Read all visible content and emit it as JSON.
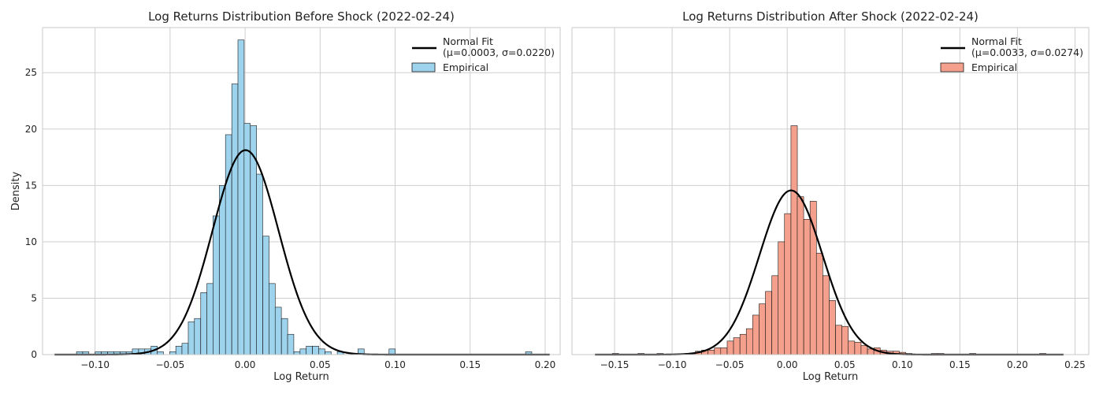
{
  "chart_data": [
    {
      "type": "bar",
      "title": "Log Returns Distribution Before Shock (2022-02-24)",
      "xlabel": "Log Return",
      "ylabel": "Density",
      "xlim": [
        -0.135,
        0.21
      ],
      "ylim": [
        0,
        29
      ],
      "xticks": [
        -0.1,
        -0.05,
        0.0,
        0.05,
        0.1,
        0.15,
        0.2
      ],
      "xtick_labels": [
        "−0.10",
        "−0.05",
        "0.00",
        "0.05",
        "0.10",
        "0.15",
        "0.20"
      ],
      "yticks": [
        0,
        5,
        10,
        15,
        20,
        25
      ],
      "ytick_labels": [
        "0",
        "5",
        "10",
        "15",
        "20",
        "25"
      ],
      "grid": true,
      "legend_position": "top-right",
      "bin_width": 0.00414,
      "bins": [
        {
          "x": -0.1103,
          "y": 0.25
        },
        {
          "x": -0.1062,
          "y": 0.25
        },
        {
          "x": -0.0979,
          "y": 0.25
        },
        {
          "x": -0.0938,
          "y": 0.25
        },
        {
          "x": -0.0896,
          "y": 0.25
        },
        {
          "x": -0.0855,
          "y": 0.25
        },
        {
          "x": -0.0813,
          "y": 0.25
        },
        {
          "x": -0.0772,
          "y": 0.25
        },
        {
          "x": -0.0731,
          "y": 0.5
        },
        {
          "x": -0.0689,
          "y": 0.5
        },
        {
          "x": -0.0648,
          "y": 0.5
        },
        {
          "x": -0.0606,
          "y": 0.75
        },
        {
          "x": -0.0565,
          "y": 0.25
        },
        {
          "x": -0.0524,
          "y": 0.0
        },
        {
          "x": -0.0482,
          "y": 0.25
        },
        {
          "x": -0.0441,
          "y": 0.75
        },
        {
          "x": -0.04,
          "y": 1.0
        },
        {
          "x": -0.0358,
          "y": 2.9
        },
        {
          "x": -0.0317,
          "y": 3.2
        },
        {
          "x": -0.0275,
          "y": 5.5
        },
        {
          "x": -0.0234,
          "y": 6.3
        },
        {
          "x": -0.0193,
          "y": 12.3
        },
        {
          "x": -0.0151,
          "y": 15.0
        },
        {
          "x": -0.011,
          "y": 19.5
        },
        {
          "x": -0.0068,
          "y": 24.0
        },
        {
          "x": -0.0027,
          "y": 27.9
        },
        {
          "x": 0.0014,
          "y": 20.5
        },
        {
          "x": 0.0056,
          "y": 20.3
        },
        {
          "x": 0.0097,
          "y": 16.0
        },
        {
          "x": 0.0139,
          "y": 10.5
        },
        {
          "x": 0.018,
          "y": 6.3
        },
        {
          "x": 0.0221,
          "y": 4.2
        },
        {
          "x": 0.0263,
          "y": 3.2
        },
        {
          "x": 0.0304,
          "y": 1.8
        },
        {
          "x": 0.0346,
          "y": 0.25
        },
        {
          "x": 0.0387,
          "y": 0.5
        },
        {
          "x": 0.0428,
          "y": 0.75
        },
        {
          "x": 0.047,
          "y": 0.75
        },
        {
          "x": 0.0511,
          "y": 0.5
        },
        {
          "x": 0.0553,
          "y": 0.25
        },
        {
          "x": 0.0635,
          "y": 0.25
        },
        {
          "x": 0.0773,
          "y": 0.5
        },
        {
          "x": 0.098,
          "y": 0.5
        },
        {
          "x": 0.189,
          "y": 0.25
        }
      ],
      "series": [
        {
          "name": "Normal Fit\n(μ=0.0003, σ=0.0220)",
          "type": "line",
          "mu": 0.0003,
          "sigma": 0.022,
          "x_range": [
            -0.127,
            0.203
          ],
          "color": "#000000"
        },
        {
          "name": "Empirical",
          "type": "bar",
          "color": "#9ed3ee"
        }
      ]
    },
    {
      "type": "bar",
      "title": "Log Returns Distribution After Shock (2022-02-24)",
      "xlabel": "Log Return",
      "ylabel": "",
      "xlim": [
        -0.187,
        0.262
      ],
      "ylim": [
        0,
        29
      ],
      "xticks": [
        -0.15,
        -0.1,
        -0.05,
        0.0,
        0.05,
        0.1,
        0.15,
        0.2,
        0.25
      ],
      "xtick_labels": [
        "−0.15",
        "−0.10",
        "−0.05",
        "0.00",
        "0.05",
        "0.10",
        "0.15",
        "0.20",
        "0.25"
      ],
      "yticks": [
        0,
        5,
        10,
        15,
        20,
        25
      ],
      "ytick_labels": [
        "",
        "",
        "",
        "",
        "",
        ""
      ],
      "grid": true,
      "legend_position": "top-right",
      "bin_width": 0.00554,
      "bins": [
        {
          "x": -0.1492,
          "y": 0.1
        },
        {
          "x": -0.127,
          "y": 0.1
        },
        {
          "x": -0.1104,
          "y": 0.1
        },
        {
          "x": -0.0827,
          "y": 0.1
        },
        {
          "x": -0.0771,
          "y": 0.3
        },
        {
          "x": -0.0716,
          "y": 0.4
        },
        {
          "x": -0.066,
          "y": 0.4
        },
        {
          "x": -0.0605,
          "y": 0.6
        },
        {
          "x": -0.055,
          "y": 0.6
        },
        {
          "x": -0.0494,
          "y": 1.2
        },
        {
          "x": -0.0439,
          "y": 1.5
        },
        {
          "x": -0.0383,
          "y": 1.8
        },
        {
          "x": -0.0328,
          "y": 2.3
        },
        {
          "x": -0.0273,
          "y": 3.5
        },
        {
          "x": -0.0217,
          "y": 4.5
        },
        {
          "x": -0.0162,
          "y": 5.6
        },
        {
          "x": -0.0106,
          "y": 7.0
        },
        {
          "x": -0.0051,
          "y": 10.0
        },
        {
          "x": 0.0004,
          "y": 12.5
        },
        {
          "x": 0.006,
          "y": 20.3
        },
        {
          "x": 0.0115,
          "y": 14.0
        },
        {
          "x": 0.0171,
          "y": 12.0
        },
        {
          "x": 0.0226,
          "y": 13.6
        },
        {
          "x": 0.0281,
          "y": 9.0
        },
        {
          "x": 0.0337,
          "y": 7.0
        },
        {
          "x": 0.0392,
          "y": 4.8
        },
        {
          "x": 0.0448,
          "y": 2.6
        },
        {
          "x": 0.0503,
          "y": 2.5
        },
        {
          "x": 0.0558,
          "y": 1.2
        },
        {
          "x": 0.0614,
          "y": 1.1
        },
        {
          "x": 0.0669,
          "y": 0.8
        },
        {
          "x": 0.0725,
          "y": 0.5
        },
        {
          "x": 0.078,
          "y": 0.6
        },
        {
          "x": 0.0835,
          "y": 0.4
        },
        {
          "x": 0.0891,
          "y": 0.3
        },
        {
          "x": 0.0946,
          "y": 0.3
        },
        {
          "x": 0.1002,
          "y": 0.2
        },
        {
          "x": 0.1057,
          "y": 0.1
        },
        {
          "x": 0.1279,
          "y": 0.1
        },
        {
          "x": 0.1334,
          "y": 0.1
        },
        {
          "x": 0.1611,
          "y": 0.1
        },
        {
          "x": 0.222,
          "y": 0.1
        }
      ],
      "series": [
        {
          "name": "Normal Fit\n(μ=0.0033, σ=0.0274)",
          "type": "line",
          "mu": 0.0033,
          "sigma": 0.0274,
          "x_range": [
            -0.167,
            0.24
          ],
          "color": "#000000"
        },
        {
          "name": "Empirical",
          "type": "bar",
          "color": "#f5a08c"
        }
      ]
    }
  ],
  "colors": {
    "before_bars": "#9ed3ee",
    "after_bars": "#f5a08c",
    "bar_edge": "#1a1a1a",
    "fit_line": "#000000",
    "grid": "#cfcfcf"
  }
}
